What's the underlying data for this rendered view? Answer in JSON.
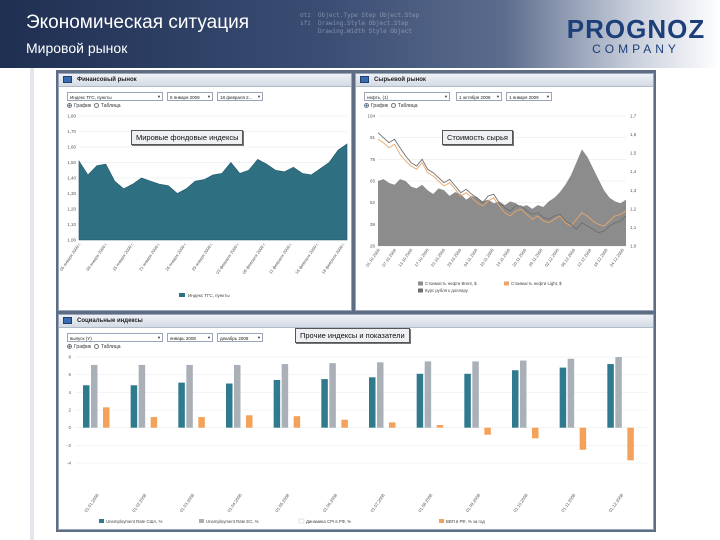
{
  "header": {
    "title": "Экономическая ситуация",
    "subtitle": "Мировой рынок",
    "logo_main": "PROGNOZ",
    "logo_sub": "COMPANY"
  },
  "panels": {
    "financial": {
      "title": "Финансовый рынок",
      "select_1": "Индекс ТГС, пункты",
      "select_2": "5 января 2009",
      "select_3": "18 февраля 2...",
      "radio_graph": "График",
      "radio_table": "Таблица",
      "chip": "Мировые фондовые индексы",
      "legend": "Индекс ТГС, пункты",
      "y_ticks": [
        "1,80",
        "1,70",
        "1,60",
        "1,50",
        "1,40",
        "1,30",
        "1,20",
        "1,10",
        "1,00"
      ],
      "x_ticks": [
        "05 января 2009 г.",
        "09 января 2009 г.",
        "15 января 2009 г.",
        "21 января 2009 г.",
        "26 января 2009 г.",
        "29 января 2009 г.",
        "03 февраля 2009 г.",
        "06 февраля 2009 г.",
        "11 февраля 2009 г.",
        "16 февраля 2009 г.",
        "18 февраля 2009 г."
      ]
    },
    "raw": {
      "title": "Сырьевой рынок",
      "select_1": "нефть, (1)",
      "select_2": "1 октября 2008",
      "select_3": "1 января 2009",
      "radio_graph": "График",
      "radio_table": "Таблица",
      "chip": "Стоимость сырья",
      "legend": [
        "Стоимость нефти Brent, $",
        "Стоимость нефти Light, $",
        "Курс рубля к доллару"
      ],
      "y_ticks_left": [
        "104",
        "91",
        "78",
        "65",
        "52",
        "39",
        "26"
      ],
      "y_ticks_right": [
        "1,7",
        "1,6",
        "1,5",
        "1,4",
        "1,3",
        "1,2",
        "1,1",
        "1,0"
      ],
      "x_ticks": [
        "01.10.2008",
        "07.10.2008",
        "13.10.2008",
        "17.10.2008",
        "23.10.2008",
        "29.10.2008",
        "04.11.2008",
        "10.11.2008",
        "14.11.2008",
        "20.11.2008",
        "26.11.2008",
        "02.12.2008",
        "08.12.2008",
        "12.12.2008",
        "18.12.2008",
        "24.12.2008"
      ]
    },
    "social": {
      "title": "Социальные индексы",
      "select_1": "выпуск (Y)",
      "select_2": "январь 2008",
      "select_3": "декабрь 2008",
      "radio_graph": "График",
      "radio_table": "Таблица",
      "chip": "Прочие индексы и показатели",
      "legend": [
        "Unemployment Rate США, %",
        "Unemployment Rate ЕС, %",
        "Динамика CPI в РФ, %",
        "ВВП в РФ, % за год"
      ],
      "y_ticks": [
        "8",
        "6",
        "4",
        "2",
        "0",
        "-2",
        "-4"
      ],
      "x_ticks": [
        "01.01.2008",
        "01.02.2008",
        "01.03.2008",
        "01.04.2008",
        "01.05.2008",
        "01.06.2008",
        "01.07.2008",
        "01.08.2008",
        "01.09.2008",
        "01.10.2008",
        "01.11.2008",
        "01.12.2008"
      ]
    }
  },
  "colors": {
    "header_dark": "#1f2f52",
    "dashboard_bg": "#5f6d84",
    "financial_area": "#2e6f82",
    "raw_area": "#8c8c8c",
    "brent_line": "#e8a56a",
    "light_line": "#6e6e6e",
    "bar_teal": "#2f7a8c",
    "bar_grey": "#a9b0b8",
    "bar_orange": "#f4a259"
  },
  "chart_data": [
    {
      "type": "area",
      "series": [
        {
          "name": "Индекс ТГС, пункты",
          "values": [
            1.51,
            1.42,
            1.48,
            1.49,
            1.38,
            1.33,
            1.36,
            1.4,
            1.38,
            1.36,
            1.35,
            1.3,
            1.33,
            1.38,
            1.39,
            1.42,
            1.43,
            1.5,
            1.43,
            1.45,
            1.52,
            1.49,
            1.45,
            1.44,
            1.47,
            1.43,
            1.42,
            1.46,
            1.5,
            1.58,
            1.62
          ]
        }
      ],
      "ylim": [
        1.0,
        1.8
      ]
    },
    {
      "type": "line",
      "series": [
        {
          "name": "Стоимость нефти Brent, $",
          "values": [
            90,
            88,
            85,
            87,
            81,
            77,
            74,
            72,
            76,
            70,
            68,
            65,
            62,
            64,
            60,
            56,
            58,
            55,
            52,
            50,
            53,
            55,
            50,
            46,
            44,
            47,
            48,
            45,
            42,
            44,
            41,
            40,
            42,
            44,
            40,
            38,
            42,
            46,
            44,
            41,
            39,
            38,
            41,
            44,
            45,
            47
          ]
        },
        {
          "name": "Стоимость нефти Light, $",
          "values": [
            94,
            91,
            88,
            90,
            85,
            80,
            76,
            74,
            78,
            72,
            70,
            67,
            64,
            66,
            62,
            58,
            60,
            57,
            55,
            52,
            56,
            57,
            52,
            49,
            47,
            50,
            50,
            47,
            45,
            46,
            43,
            42,
            44,
            45,
            41,
            39,
            36,
            40,
            38,
            36,
            34,
            35,
            38,
            40,
            41,
            44
          ]
        },
        {
          "name": "Курс рубля к доллару",
          "values": [
            1.35,
            1.36,
            1.34,
            1.33,
            1.36,
            1.35,
            1.32,
            1.31,
            1.33,
            1.3,
            1.28,
            1.31,
            1.3,
            1.27,
            1.29,
            1.28,
            1.25,
            1.27,
            1.26,
            1.24,
            1.25,
            1.23,
            1.24,
            1.22,
            1.24,
            1.23,
            1.21,
            1.22,
            1.2,
            1.22,
            1.21,
            1.24,
            1.26,
            1.29,
            1.33,
            1.38,
            1.45,
            1.52,
            1.48,
            1.42,
            1.36,
            1.3,
            1.26,
            1.24,
            1.23,
            1.25
          ]
        }
      ],
      "ylim_left": [
        26,
        104
      ],
      "ylim_right": [
        1.0,
        1.7
      ]
    },
    {
      "type": "bar",
      "categories": [
        "01.01.2008",
        "01.02.2008",
        "01.03.2008",
        "01.04.2008",
        "01.05.2008",
        "01.06.2008",
        "01.07.2008",
        "01.08.2008",
        "01.09.2008",
        "01.10.2008",
        "01.11.2008",
        "01.12.2008"
      ],
      "series": [
        {
          "name": "Unemployment Rate США, %",
          "values": [
            4.8,
            4.8,
            5.1,
            5.0,
            5.4,
            5.5,
            5.7,
            6.1,
            6.1,
            6.5,
            6.8,
            7.2
          ]
        },
        {
          "name": "Unemployment Rate ЕС, %",
          "values": [
            7.1,
            7.1,
            7.1,
            7.1,
            7.2,
            7.3,
            7.4,
            7.5,
            7.5,
            7.6,
            7.8,
            8.0
          ]
        },
        {
          "name": "Динамика CPI в РФ, %",
          "values": [
            2.3,
            1.2,
            1.2,
            1.4,
            1.4,
            1.0,
            0.5,
            0.4,
            0.8,
            0.9,
            0.8,
            0.7
          ]
        },
        {
          "name": "ВВП в РФ, % за год",
          "values": [
            2.3,
            1.2,
            1.2,
            1.4,
            1.3,
            0.9,
            0.6,
            0.3,
            -0.8,
            -1.2,
            -2.5,
            -3.7
          ]
        }
      ],
      "ylim": [
        -4,
        8
      ]
    }
  ]
}
